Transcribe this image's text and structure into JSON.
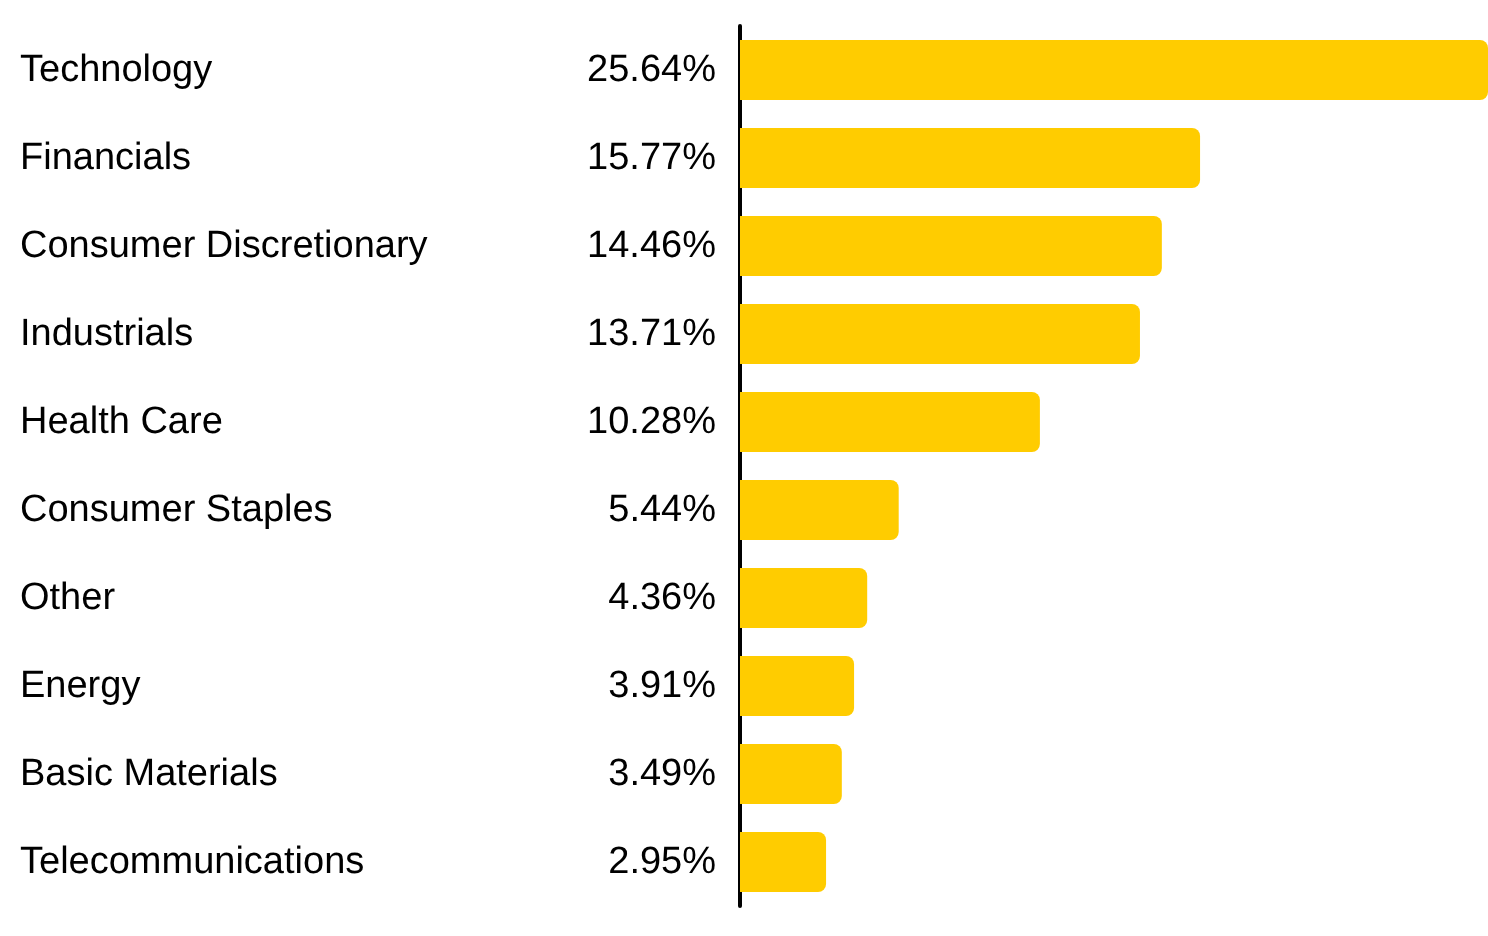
{
  "chart_data": {
    "type": "bar",
    "orientation": "horizontal",
    "categories": [
      "Technology",
      "Financials",
      "Consumer Discretionary",
      "Industrials",
      "Health Care",
      "Consumer Staples",
      "Other",
      "Energy",
      "Basic Materials",
      "Telecommunications"
    ],
    "values": [
      25.64,
      15.77,
      14.46,
      13.71,
      10.28,
      5.44,
      4.36,
      3.91,
      3.49,
      2.95
    ],
    "value_labels": [
      "25.64%",
      "15.77%",
      "14.46%",
      "13.71%",
      "10.28%",
      "5.44%",
      "4.36%",
      "3.91%",
      "3.49%",
      "2.95%"
    ],
    "color": "#ffcc00"
  }
}
